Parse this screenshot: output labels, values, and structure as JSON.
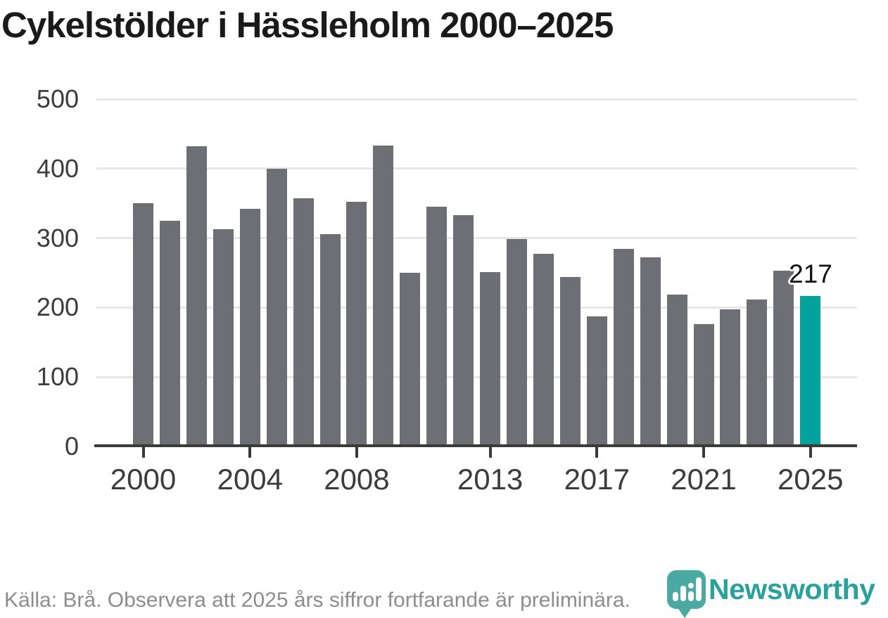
{
  "title": "Cykelstölder i Hässleholm 2000–2025",
  "footer": {
    "source_note": "Källa: Brå. Observera att 2025 års siffror fortfarande är preliminära."
  },
  "branding": {
    "name": "Newsworthy",
    "icon": "speech-bubble-bar-chart-icon",
    "text_color": "#2ba19c",
    "icon_color": "#4ba9a3"
  },
  "annotation": {
    "value_label": "217"
  },
  "chart_data": {
    "type": "bar",
    "title": "Cykelstölder i Hässleholm 2000–2025",
    "categories": [
      2000,
      2001,
      2002,
      2003,
      2004,
      2005,
      2006,
      2007,
      2008,
      2009,
      2010,
      2011,
      2012,
      2013,
      2014,
      2015,
      2016,
      2017,
      2018,
      2019,
      2020,
      2021,
      2022,
      2023,
      2024,
      2025
    ],
    "values": [
      350,
      325,
      432,
      313,
      342,
      400,
      357,
      306,
      352,
      433,
      250,
      345,
      333,
      251,
      299,
      277,
      244,
      187,
      284,
      272,
      219,
      176,
      197,
      212,
      253,
      217
    ],
    "x_tick_labels": [
      "2000",
      "2004",
      "2008",
      "2013",
      "2017",
      "2021",
      "2025"
    ],
    "x_tick_years": [
      2000,
      2004,
      2008,
      2013,
      2017,
      2021,
      2025
    ],
    "y_ticks": [
      0,
      100,
      200,
      300,
      400,
      500
    ],
    "ylim": [
      0,
      500
    ],
    "grid": "horizontal",
    "legend": "none",
    "bar_color": "#6e6e75",
    "highlight_color": "#00a39b",
    "highlighted_category": 2025,
    "annotated_category": 2025,
    "annotated_value": 217,
    "axis_color": "#3a3a3a",
    "gridline_color": "#e7e7e7",
    "label_color": "#3c3c3c"
  }
}
